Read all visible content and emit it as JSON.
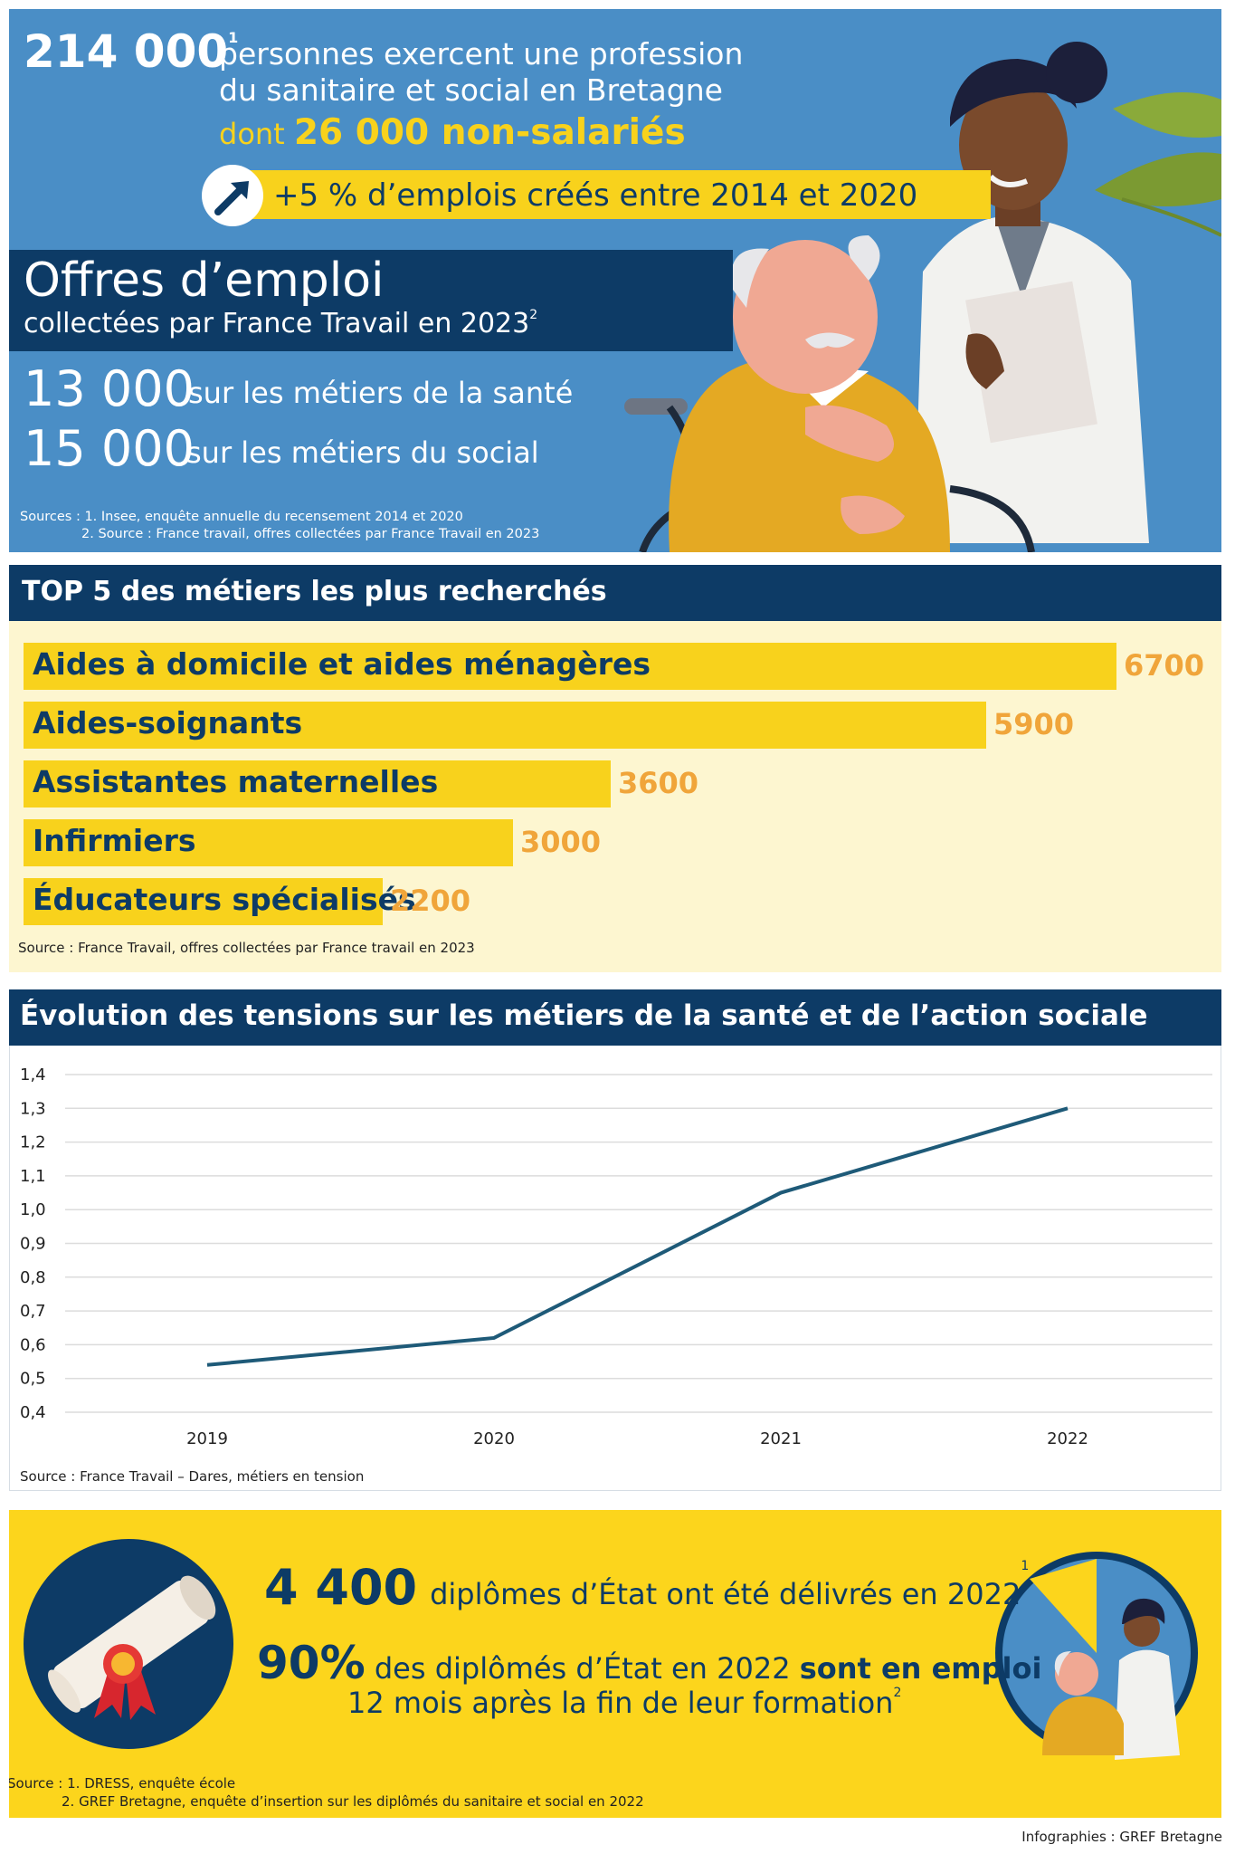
{
  "hero": {
    "total": "214 000",
    "total_note": "1",
    "line1": "personnes exercent une profession",
    "line2": "du sanitaire et social en Bretagne",
    "dont_prefix": "dont",
    "dont_value": "26 000 non-salariés",
    "growth": "+5 % d’emplois créés entre 2014 et 2020",
    "offres_title": "Offres d’emploi",
    "offres_subtitle": "collectées par France Travail en 2023",
    "offres_note": "2",
    "offers": [
      {
        "value": "13 000",
        "label": "sur les métiers de la santé"
      },
      {
        "value": "15 000",
        "label": "sur les métiers du social"
      }
    ],
    "sources": [
      "Sources : 1. Insee, enquête annuelle du recensement 2014 et 2020",
      "2. Source : France travail, offres collectées par France Travail en 2023"
    ]
  },
  "top5": {
    "title": "TOP 5 des métiers les plus recherchés",
    "source": "Source : France Travail, offres collectées par France travail en 2023",
    "chart_data": {
      "type": "bar",
      "orientation": "horizontal",
      "categories": [
        "Aides à domicile et aides ménagères",
        "Aides-soignants",
        "Assistantes maternelles",
        "Infirmiers",
        "Éducateurs spécialisés"
      ],
      "values": [
        6700,
        5900,
        3600,
        3000,
        2200
      ],
      "value_labels": [
        "6700",
        "5900",
        "3600",
        "3000",
        "2200"
      ],
      "bar_color": "#f8d21c",
      "value_color": "#f0a53a"
    }
  },
  "tension": {
    "title": "Évolution des tensions sur les métiers de la santé et de l’action sociale",
    "source": "Source : France Travail – Dares, métiers en tension",
    "chart_data": {
      "type": "line",
      "x": [
        "2019",
        "2020",
        "2021",
        "2022"
      ],
      "values": [
        0.54,
        0.62,
        1.05,
        1.3
      ],
      "ylim": [
        0.4,
        1.4
      ],
      "yticks": [
        "0,4",
        "0,5",
        "0,6",
        "0,7",
        "0,8",
        "0,9",
        "1,0",
        "1,1",
        "1,2",
        "1,3",
        "1,4"
      ],
      "grid": true,
      "line_color": "#1e5a78"
    }
  },
  "diplomes": {
    "count": "4 400",
    "count_text": "diplômes d’État ont été délivrés en 2022",
    "count_note": "1",
    "pct": "90%",
    "pct_text": "des diplômés d’État en 2022",
    "pct_bold": "sont en emploi",
    "pct_line2": "12 mois après la fin de leur formation",
    "pct_note": "2",
    "sources": [
      "Source : 1. DRESS, enquête école",
      "2. GREF Bretagne, enquête d’insertion sur les diplômés du sanitaire et social en 2022"
    ]
  },
  "credit": "Infographies : GREF Bretagne"
}
